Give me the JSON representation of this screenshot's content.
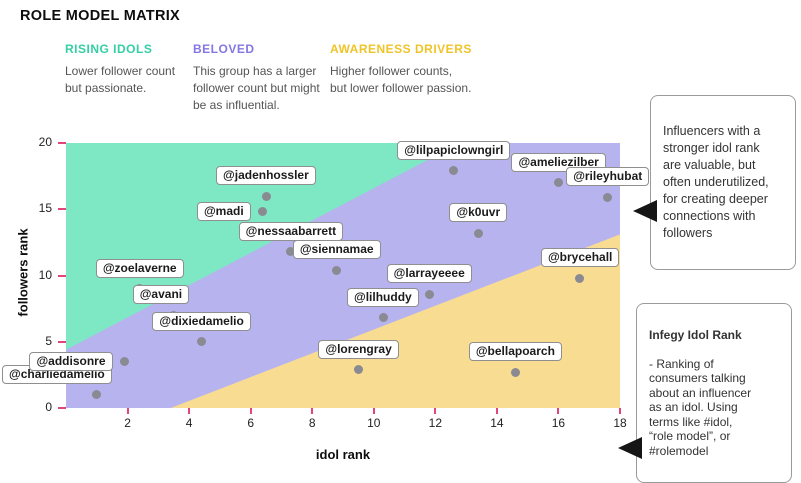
{
  "title": "ROLE MODEL MATRIX",
  "legend": [
    {
      "label": "RISING IDOLS",
      "desc": "Lower follower count\nbut passionate.",
      "color": "#35cfa5"
    },
    {
      "label": "BELOVED",
      "desc": "This group has a larger\nfollower count but might\nbe as influential.",
      "color": "#8476e3"
    },
    {
      "label": "AWARENESS DRIVERS",
      "desc": "Higher follower counts,\nbut lower follower passion.",
      "color": "#f0c428"
    }
  ],
  "chart_data": {
    "type": "scatter",
    "title": "ROLE MODEL MATRIX",
    "xlabel": "idol rank",
    "ylabel": "followers rank",
    "xlim": [
      0,
      18
    ],
    "ylim": [
      0,
      20
    ],
    "x_ticks": [
      2,
      4,
      6,
      8,
      10,
      12,
      14,
      16,
      18
    ],
    "y_ticks": [
      0,
      5,
      10,
      15,
      20
    ],
    "tick_color": "#e0457b",
    "point_color": "#8a8a93",
    "regions": [
      {
        "name": "beloved",
        "color": "#b7b3ef",
        "polygon": [
          [
            0,
            0
          ],
          [
            18,
            0
          ],
          [
            18,
            20
          ],
          [
            0,
            20
          ]
        ]
      },
      {
        "name": "rising-idols",
        "color": "#7de8c3",
        "polygon": [
          [
            0,
            4.4
          ],
          [
            0,
            20
          ],
          [
            12.8,
            20
          ]
        ]
      },
      {
        "name": "awareness-drivers",
        "color": "#f8dc92",
        "polygon": [
          [
            3.4,
            0
          ],
          [
            18,
            0
          ],
          [
            18,
            13.1
          ]
        ]
      }
    ],
    "points": [
      {
        "label": "@charliedamelio",
        "x": 1.0,
        "y": 1.0,
        "place": "above-left"
      },
      {
        "label": "@addisonre",
        "x": 1.9,
        "y": 3.5,
        "place": "left"
      },
      {
        "label": "@zoelaverne",
        "x": 2.4,
        "y": 9.0,
        "place": "above"
      },
      {
        "label": "@avani",
        "x": 3.5,
        "y": 7.0,
        "place": "above-left"
      },
      {
        "label": "@dixiedamelio",
        "x": 4.4,
        "y": 5.0,
        "place": "above"
      },
      {
        "label": "@jadenhossler",
        "x": 6.5,
        "y": 16.0,
        "place": "above"
      },
      {
        "label": "@madi",
        "x": 6.4,
        "y": 14.8,
        "place": "left"
      },
      {
        "label": "@nessaabarrett",
        "x": 7.3,
        "y": 11.8,
        "place": "above"
      },
      {
        "label": "@siennamae",
        "x": 8.8,
        "y": 10.4,
        "place": "above"
      },
      {
        "label": "@lorengray",
        "x": 9.5,
        "y": 2.9,
        "place": "above"
      },
      {
        "label": "@lilhuddy",
        "x": 10.3,
        "y": 6.8,
        "place": "above"
      },
      {
        "label": "@larrayeeee",
        "x": 11.8,
        "y": 8.6,
        "place": "above"
      },
      {
        "label": "@lilpapiclowngirl",
        "x": 12.6,
        "y": 17.9,
        "place": "above"
      },
      {
        "label": "@k0uvr",
        "x": 13.4,
        "y": 13.2,
        "place": "above"
      },
      {
        "label": "@bellapoarch",
        "x": 14.6,
        "y": 2.7,
        "place": "above"
      },
      {
        "label": "@ameliezilber",
        "x": 16.0,
        "y": 17.0,
        "place": "above"
      },
      {
        "label": "@rileyhubat",
        "x": 17.6,
        "y": 15.9,
        "place": "above"
      },
      {
        "label": "@brycehall",
        "x": 16.7,
        "y": 9.8,
        "place": "above"
      }
    ]
  },
  "callouts": [
    {
      "text": "Influencers with a\nstronger idol rank\nare valuable, but\noften underutilized,\nfor creating deeper\nconnections with\nfollowers"
    },
    {
      "title": "Infegy Idol Rank",
      "text": "- Ranking of\nconsumers talking\nabout an influencer\nas an idol. Using\nterms like #idol,\n“role model”, or\n#rolemodel"
    }
  ]
}
